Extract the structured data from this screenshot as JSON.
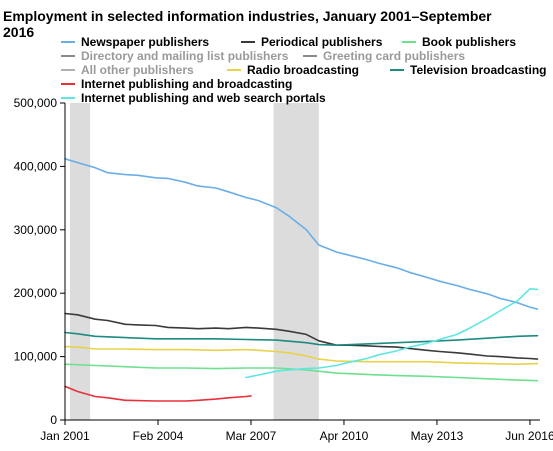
{
  "chart_data": {
    "type": "line",
    "title_lines": [
      "Employment in selected information industries, January 2001–September",
      "2016"
    ],
    "xlabel": "",
    "ylabel": "",
    "x_domain": [
      "2001-01",
      "2016-10"
    ],
    "ylim": [
      0,
      500000
    ],
    "y_ticks": [
      0,
      100000,
      200000,
      300000,
      400000,
      500000
    ],
    "y_tick_labels": [
      "0",
      "100,000",
      "200,000",
      "300,000",
      "400,000",
      "500,000"
    ],
    "x_ticks": [
      "2001-01",
      "2004-02",
      "2007-03",
      "2010-04",
      "2013-05",
      "2016-06"
    ],
    "x_tick_labels": [
      "Jan 2001",
      "Feb 2004",
      "Mar 2007",
      "Apr 2010",
      "May 2013",
      "Jun 2016"
    ],
    "grid": false,
    "legend_position": "top",
    "shaded_periods": [
      {
        "start": "2001-03",
        "end": "2001-11"
      },
      {
        "start": "2007-12",
        "end": "2009-06"
      }
    ],
    "series": [
      {
        "name": "Newspaper publishers",
        "color": "#6aaee8",
        "legend_enabled": true,
        "points": [
          [
            "2001-01",
            412000
          ],
          [
            "2001-06",
            406000
          ],
          [
            "2002-01",
            398000
          ],
          [
            "2002-06",
            390000
          ],
          [
            "2003-01",
            387000
          ],
          [
            "2003-06",
            386000
          ],
          [
            "2004-01",
            382000
          ],
          [
            "2004-06",
            381000
          ],
          [
            "2005-01",
            375000
          ],
          [
            "2005-06",
            369000
          ],
          [
            "2006-01",
            366000
          ],
          [
            "2006-06",
            360000
          ],
          [
            "2007-01",
            351000
          ],
          [
            "2007-06",
            346000
          ],
          [
            "2008-01",
            335000
          ],
          [
            "2008-06",
            322000
          ],
          [
            "2009-01",
            300000
          ],
          [
            "2009-06",
            276000
          ],
          [
            "2010-01",
            265000
          ],
          [
            "2010-06",
            260000
          ],
          [
            "2011-01",
            253000
          ],
          [
            "2011-06",
            247000
          ],
          [
            "2012-01",
            240000
          ],
          [
            "2012-06",
            233000
          ],
          [
            "2013-01",
            225000
          ],
          [
            "2013-06",
            219000
          ],
          [
            "2014-01",
            212000
          ],
          [
            "2014-06",
            206000
          ],
          [
            "2015-01",
            199000
          ],
          [
            "2015-06",
            192000
          ],
          [
            "2016-01",
            185000
          ],
          [
            "2016-06",
            178000
          ],
          [
            "2016-09",
            175000
          ]
        ]
      },
      {
        "name": "Periodical publishers",
        "color": "#3a3a3a",
        "legend_enabled": true,
        "points": [
          [
            "2001-01",
            168000
          ],
          [
            "2001-06",
            166000
          ],
          [
            "2002-01",
            159000
          ],
          [
            "2002-06",
            157000
          ],
          [
            "2003-01",
            151000
          ],
          [
            "2003-06",
            150000
          ],
          [
            "2004-01",
            149000
          ],
          [
            "2004-06",
            146000
          ],
          [
            "2005-01",
            145000
          ],
          [
            "2005-06",
            144000
          ],
          [
            "2006-01",
            145000
          ],
          [
            "2006-06",
            144000
          ],
          [
            "2007-01",
            146000
          ],
          [
            "2007-06",
            145000
          ],
          [
            "2008-01",
            143000
          ],
          [
            "2008-06",
            140000
          ],
          [
            "2009-01",
            135000
          ],
          [
            "2009-06",
            125000
          ],
          [
            "2010-01",
            118000
          ],
          [
            "2010-06",
            118000
          ],
          [
            "2011-01",
            117000
          ],
          [
            "2011-06",
            116000
          ],
          [
            "2012-01",
            115000
          ],
          [
            "2012-06",
            113000
          ],
          [
            "2013-01",
            110000
          ],
          [
            "2013-06",
            108000
          ],
          [
            "2014-01",
            106000
          ],
          [
            "2014-06",
            104000
          ],
          [
            "2015-01",
            101000
          ],
          [
            "2015-06",
            100000
          ],
          [
            "2016-01",
            98000
          ],
          [
            "2016-06",
            97000
          ],
          [
            "2016-09",
            96000
          ]
        ]
      },
      {
        "name": "Book publishers",
        "color": "#6ee08e",
        "legend_enabled": true,
        "points": [
          [
            "2001-01",
            88000
          ],
          [
            "2002-01",
            86000
          ],
          [
            "2003-01",
            84000
          ],
          [
            "2004-01",
            82000
          ],
          [
            "2005-01",
            82000
          ],
          [
            "2006-01",
            81000
          ],
          [
            "2007-01",
            82000
          ],
          [
            "2008-01",
            82000
          ],
          [
            "2009-01",
            79000
          ],
          [
            "2010-01",
            74000
          ],
          [
            "2011-01",
            72000
          ],
          [
            "2012-01",
            70000
          ],
          [
            "2013-01",
            69000
          ],
          [
            "2014-01",
            67000
          ],
          [
            "2015-01",
            65000
          ],
          [
            "2016-01",
            63000
          ],
          [
            "2016-09",
            62000
          ]
        ]
      },
      {
        "name": "Directory and mailing list publishers",
        "color": "#8a8a8a",
        "legend_enabled": false,
        "points": []
      },
      {
        "name": "Greeting card publishers",
        "color": "#8a8a8a",
        "legend_enabled": false,
        "points": []
      },
      {
        "name": "All other publishers",
        "color": "#b0b0b0",
        "legend_enabled": false,
        "points": []
      },
      {
        "name": "Radio broadcasting",
        "color": "#e8d24a",
        "legend_enabled": true,
        "points": [
          [
            "2001-01",
            116000
          ],
          [
            "2001-06",
            115000
          ],
          [
            "2002-01",
            112000
          ],
          [
            "2003-01",
            112000
          ],
          [
            "2004-01",
            111000
          ],
          [
            "2005-01",
            111000
          ],
          [
            "2006-01",
            110000
          ],
          [
            "2007-01",
            111000
          ],
          [
            "2007-06",
            110000
          ],
          [
            "2008-01",
            108000
          ],
          [
            "2008-06",
            106000
          ],
          [
            "2009-01",
            101000
          ],
          [
            "2009-06",
            96000
          ],
          [
            "2010-01",
            93000
          ],
          [
            "2011-01",
            92000
          ],
          [
            "2012-01",
            92000
          ],
          [
            "2013-01",
            92000
          ],
          [
            "2014-01",
            90000
          ],
          [
            "2015-01",
            89000
          ],
          [
            "2016-01",
            88000
          ],
          [
            "2016-09",
            89000
          ]
        ]
      },
      {
        "name": "Television broadcasting",
        "color": "#1f8a82",
        "legend_enabled": true,
        "points": [
          [
            "2001-01",
            138000
          ],
          [
            "2001-06",
            136000
          ],
          [
            "2002-01",
            132000
          ],
          [
            "2003-01",
            130000
          ],
          [
            "2004-01",
            128000
          ],
          [
            "2005-01",
            128000
          ],
          [
            "2006-01",
            128000
          ],
          [
            "2007-01",
            127000
          ],
          [
            "2008-01",
            126000
          ],
          [
            "2009-01",
            122000
          ],
          [
            "2009-06",
            119000
          ],
          [
            "2010-01",
            118000
          ],
          [
            "2011-01",
            120000
          ],
          [
            "2012-01",
            122000
          ],
          [
            "2013-01",
            124000
          ],
          [
            "2014-01",
            126000
          ],
          [
            "2015-01",
            129000
          ],
          [
            "2016-01",
            132000
          ],
          [
            "2016-09",
            133000
          ]
        ]
      },
      {
        "name": "Internet publishing and broadcasting",
        "color": "#e8303a",
        "legend_enabled": true,
        "points": [
          [
            "2001-01",
            53000
          ],
          [
            "2001-06",
            45000
          ],
          [
            "2002-01",
            37000
          ],
          [
            "2002-06",
            35000
          ],
          [
            "2003-01",
            31000
          ],
          [
            "2004-01",
            30000
          ],
          [
            "2005-01",
            30000
          ],
          [
            "2005-06",
            31000
          ],
          [
            "2006-01",
            33000
          ],
          [
            "2006-06",
            35000
          ],
          [
            "2007-01",
            37000
          ],
          [
            "2007-03",
            38000
          ]
        ]
      },
      {
        "name": "Internet publishing and web search portals",
        "color": "#5ee6e0",
        "legend_enabled": true,
        "points": [
          [
            "2007-01",
            67000
          ],
          [
            "2007-06",
            71000
          ],
          [
            "2008-01",
            77000
          ],
          [
            "2008-06",
            79000
          ],
          [
            "2009-01",
            81000
          ],
          [
            "2009-06",
            82000
          ],
          [
            "2010-01",
            86000
          ],
          [
            "2010-06",
            91000
          ],
          [
            "2011-01",
            97000
          ],
          [
            "2011-06",
            103000
          ],
          [
            "2012-01",
            109000
          ],
          [
            "2012-06",
            115000
          ],
          [
            "2013-01",
            121000
          ],
          [
            "2013-06",
            127000
          ],
          [
            "2014-01",
            135000
          ],
          [
            "2014-06",
            145000
          ],
          [
            "2015-01",
            160000
          ],
          [
            "2015-06",
            172000
          ],
          [
            "2016-01",
            188000
          ],
          [
            "2016-06",
            207000
          ],
          [
            "2016-09",
            206000
          ]
        ]
      }
    ]
  }
}
